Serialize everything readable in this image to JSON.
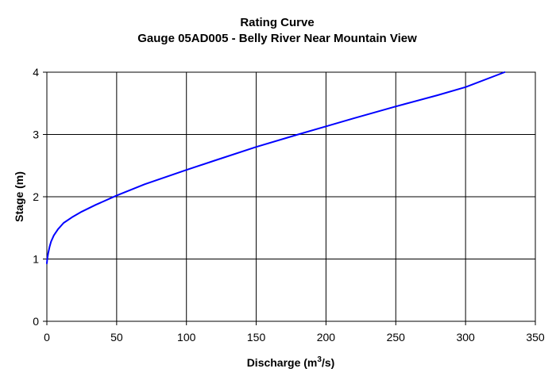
{
  "chart_data": {
    "type": "line",
    "title": "Rating Curve",
    "subtitle": "Gauge 05AD005 - Belly River Near Mountain View",
    "xlabel": {
      "prefix": "Discharge (m",
      "sup": "3",
      "suffix": "/s)"
    },
    "ylabel": "Stage (m)",
    "xlim": [
      0,
      350
    ],
    "ylim": [
      0,
      4
    ],
    "xticks": [
      "0",
      "50",
      "100",
      "150",
      "200",
      "250",
      "300",
      "350"
    ],
    "yticks": [
      "0",
      "1",
      "2",
      "3",
      "4"
    ],
    "grid": true,
    "series": [
      {
        "color": "#0000ff",
        "x": [
          0,
          0.3,
          1,
          2,
          3,
          5,
          8,
          12,
          18,
          25,
          35,
          50,
          70,
          100,
          120,
          150,
          180,
          200,
          220,
          250,
          280,
          300,
          328
        ],
        "y": [
          0.93,
          1.0,
          1.1,
          1.2,
          1.28,
          1.38,
          1.48,
          1.58,
          1.67,
          1.76,
          1.87,
          2.02,
          2.2,
          2.43,
          2.58,
          2.8,
          3.0,
          3.13,
          3.26,
          3.45,
          3.63,
          3.76,
          4.0
        ]
      }
    ]
  }
}
